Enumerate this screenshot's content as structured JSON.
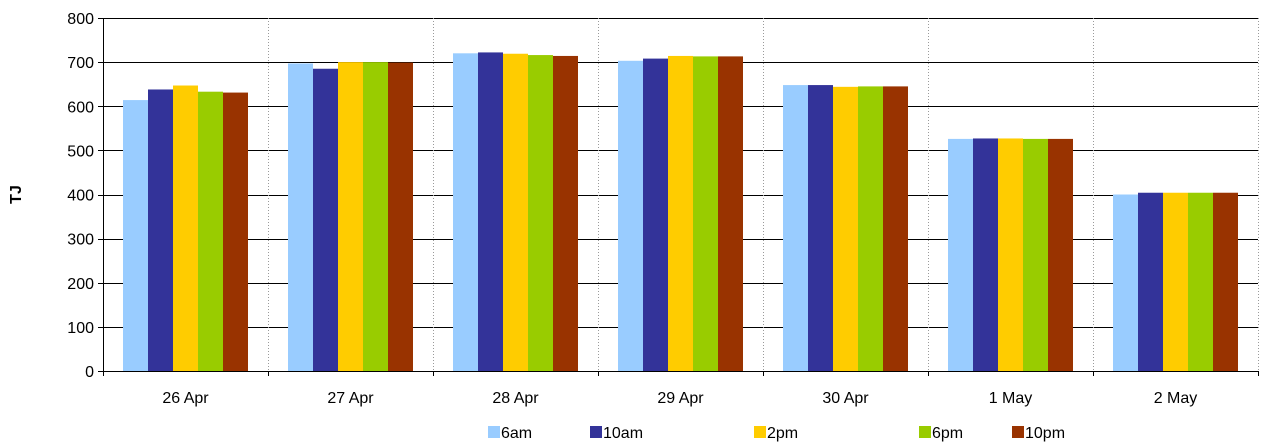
{
  "chart_data": {
    "type": "bar",
    "ylabel": "TJ",
    "xlabel": "",
    "title": "",
    "ylim": [
      0,
      800
    ],
    "y_ticks": [
      0,
      100,
      200,
      300,
      400,
      500,
      600,
      700,
      800
    ],
    "grid": "horizontal and vertical",
    "legend_position": "bottom",
    "categories": [
      "26 Apr",
      "27 Apr",
      "28 Apr",
      "29 Apr",
      "30 Apr",
      "1 May",
      "2 May"
    ],
    "series": [
      {
        "name": "6am",
        "color": "#99ccff",
        "values": [
          614,
          697,
          720,
          703,
          648,
          526,
          400
        ]
      },
      {
        "name": "10am",
        "color": "#333399",
        "values": [
          638,
          685,
          722,
          708,
          648,
          527,
          404
        ]
      },
      {
        "name": "2pm",
        "color": "#ffcc00",
        "values": [
          647,
          700,
          719,
          714,
          644,
          527,
          404
        ]
      },
      {
        "name": "6pm",
        "color": "#99cc00",
        "values": [
          633,
          700,
          716,
          713,
          645,
          526,
          404
        ]
      },
      {
        "name": "10pm",
        "color": "#993300",
        "values": [
          631,
          699,
          714,
          713,
          645,
          526,
          404
        ]
      }
    ]
  }
}
